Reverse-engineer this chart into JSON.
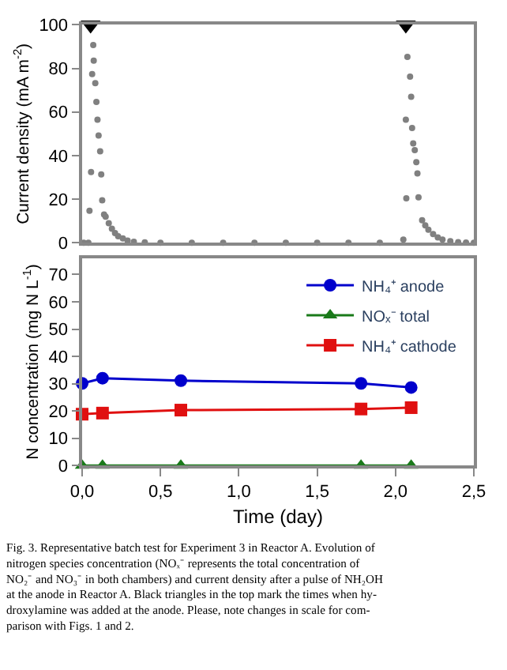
{
  "chart_data": [
    {
      "type": "scatter",
      "ylabel": "Current density (mA m$^{-2}$)",
      "xlim": [
        0,
        2.5
      ],
      "ylim": [
        0,
        100
      ],
      "yticks": [
        0,
        20,
        40,
        60,
        80,
        100
      ],
      "tick_labels": "y",
      "legend": false,
      "series": [
        {
          "color": "#808080",
          "marker": "circle",
          "x": [
            0.01,
            0.04,
            0.047,
            0.057,
            0.064,
            0.071,
            0.074,
            0.084,
            0.091,
            0.098,
            0.105,
            0.115,
            0.122,
            0.128,
            0.14,
            0.15,
            0.17,
            0.19,
            0.21,
            0.23,
            0.26,
            0.29,
            0.33,
            0.4,
            0.5,
            0.7,
            0.9,
            1.1,
            1.3,
            1.5,
            1.7,
            1.9,
            2.05,
            2.066,
            2.069,
            2.076,
            2.093,
            2.1,
            2.106,
            2.113,
            2.123,
            2.133,
            2.14,
            2.147,
            2.17,
            2.19,
            2.21,
            2.24,
            2.27,
            2.3,
            2.35,
            2.4,
            2.45,
            2.5
          ],
          "values": [
            0,
            0,
            14.7,
            32.5,
            77.4,
            90.7,
            83.6,
            73.2,
            64.6,
            56.5,
            49.2,
            42,
            31.4,
            19.5,
            13,
            12,
            9,
            6.5,
            4.5,
            3,
            2,
            1,
            0.5,
            0.2,
            0,
            0,
            0,
            0,
            0,
            0,
            0,
            0,
            1.5,
            56.5,
            20.4,
            85.3,
            76.2,
            67,
            52.7,
            45.6,
            42.5,
            37,
            31.8,
            20.9,
            10.4,
            8,
            6,
            4,
            2.5,
            1.5,
            0.8,
            0.3,
            0.1,
            0
          ]
        },
        {
          "color": "#000000",
          "marker": "triangle",
          "x": [
            0.054,
            2.066
          ],
          "values": [
            100,
            100
          ]
        }
      ]
    },
    {
      "type": "line",
      "xlabel": "Time (day)",
      "ylabel": "N concentration (mg N L$^{-1}$)",
      "x": [
        0,
        0.13,
        0.63,
        1.78,
        2.1
      ],
      "xlim": [
        0,
        2.5
      ],
      "ylim": [
        0,
        76
      ],
      "xticks": [
        {
          "value": 0,
          "label": "0,0"
        },
        {
          "value": 0.5,
          "label": "0,5"
        },
        {
          "value": 1,
          "label": "1,0"
        },
        {
          "value": 1.5,
          "label": "1,5"
        },
        {
          "value": 2,
          "label": "2,0"
        },
        {
          "value": 2.5,
          "label": "2,5"
        }
      ],
      "yticks": [
        0,
        10,
        20,
        30,
        40,
        50,
        60,
        70
      ],
      "legend": "top right",
      "series": [
        {
          "name": "NH₄⁺ anode",
          "color": "#0000cc",
          "marker": "circle",
          "values": [
            30.1,
            32.0,
            31.1,
            30.1,
            28.6
          ]
        },
        {
          "name": "NOₓ⁻ total",
          "color": "#1a7a1a",
          "marker": "triangle",
          "values": [
            0,
            0,
            0,
            0,
            0
          ]
        },
        {
          "name": "NH₄⁺ cathode",
          "color": "#e01010",
          "marker": "square",
          "values": [
            18.8,
            19.2,
            20.3,
            20.7,
            21.2
          ]
        }
      ],
      "annotations": [
        "Fig. 3. Representative batch test for Experiment 3 in Reactor A. Evolution of\nnitrogen species concentration (NOₓ⁻ represents the total concentration of\nNO₂⁻ and NO₃⁻ in both chambers) and current density after a pulse of NH₂OH\nat the anode in Reactor A. Black triangles in the top mark the times when hy-\ndroxylamine was added at the anode. Please, note changes in scale for com-\nparison with Figs. 1 and 2."
      ]
    }
  ]
}
